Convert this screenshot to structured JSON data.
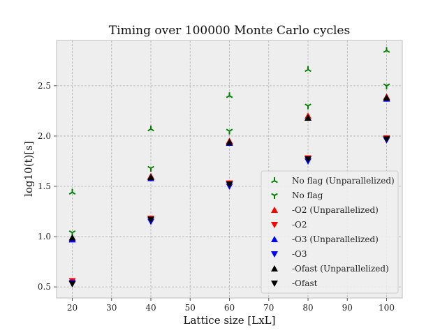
{
  "chart_data": {
    "type": "scatter",
    "title": "Timing over 100000 Monte Carlo cycles",
    "xlabel": "Lattice size [LxL]",
    "ylabel": "log10(t)[s]",
    "xlim": [
      16,
      104
    ],
    "ylim": [
      0.39,
      2.95
    ],
    "x_ticks": [
      20,
      30,
      40,
      50,
      60,
      70,
      80,
      90,
      100
    ],
    "y_ticks": [
      0.5,
      1.0,
      1.5,
      2.0,
      2.5
    ],
    "y_tick_labels": [
      "0.5",
      "1.0",
      "1.5",
      "2.0",
      "2.5"
    ],
    "grid": true,
    "legend_position": "lower-right",
    "x": [
      20,
      40,
      60,
      80,
      100
    ],
    "series": [
      {
        "name": "No flag (Unparallelized)",
        "marker": "tri-up",
        "color": "#008000",
        "values": [
          1.44,
          2.07,
          2.4,
          2.66,
          2.85
        ]
      },
      {
        "name": "No flag",
        "marker": "tri-down",
        "color": "#008000",
        "values": [
          1.04,
          1.68,
          2.05,
          2.3,
          2.5
        ]
      },
      {
        "name": "-O2 (Unparallelized)",
        "marker": "triangle-up",
        "color": "#ff0000",
        "values": [
          0.98,
          1.6,
          1.95,
          2.2,
          2.39
        ]
      },
      {
        "name": "-O2",
        "marker": "triangle-down",
        "color": "#ff0000",
        "values": [
          0.56,
          1.18,
          1.53,
          1.78,
          1.98
        ]
      },
      {
        "name": "-O3 (Unparallelized)",
        "marker": "triangle-up",
        "color": "#0000ff",
        "values": [
          0.97,
          1.58,
          1.93,
          2.18,
          2.37
        ]
      },
      {
        "name": "-O3",
        "marker": "triangle-down",
        "color": "#0000ff",
        "values": [
          0.54,
          1.15,
          1.5,
          1.75,
          1.96
        ]
      },
      {
        "name": "-Ofast (Unparallelized)",
        "marker": "triangle-up",
        "color": "#000000",
        "values": [
          0.99,
          1.59,
          1.94,
          2.18,
          2.38
        ]
      },
      {
        "name": "-Ofast",
        "marker": "triangle-down",
        "color": "#000000",
        "values": [
          0.53,
          1.17,
          1.52,
          1.77,
          1.97
        ]
      }
    ]
  }
}
